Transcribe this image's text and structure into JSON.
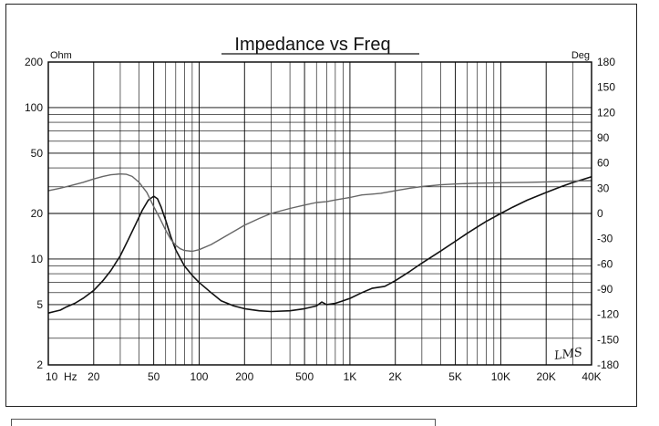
{
  "chart_data": {
    "type": "line",
    "title": "Impedance vs Freq",
    "y_left_unit": "Ohm",
    "y_right_unit": "Deg",
    "x_scale": "log",
    "y_left_scale": "log",
    "xlim": [
      10,
      40000
    ],
    "ylim_left": [
      2,
      200
    ],
    "ylim_right": [
      -180,
      180
    ],
    "x_tick_labels": [
      {
        "value": 10,
        "label": "10"
      },
      {
        "value": 20,
        "label": "20"
      },
      {
        "value": 50,
        "label": "50"
      },
      {
        "value": 100,
        "label": "100"
      },
      {
        "value": 200,
        "label": "200"
      },
      {
        "value": 500,
        "label": "500"
      },
      {
        "value": 1000,
        "label": "1K"
      },
      {
        "value": 2000,
        "label": "2K"
      },
      {
        "value": 5000,
        "label": "5K"
      },
      {
        "value": 10000,
        "label": "10K"
      },
      {
        "value": 20000,
        "label": "20K"
      },
      {
        "value": 40000,
        "label": "40K"
      }
    ],
    "x_unit_label": "Hz",
    "y_left_tick_labels": [
      {
        "value": 2,
        "label": "2"
      },
      {
        "value": 5,
        "label": "5"
      },
      {
        "value": 10,
        "label": "10"
      },
      {
        "value": 20,
        "label": "20"
      },
      {
        "value": 50,
        "label": "50"
      },
      {
        "value": 100,
        "label": "100"
      },
      {
        "value": 200,
        "label": "200"
      }
    ],
    "y_right_tick_labels": [
      {
        "value": 180,
        "label": "180"
      },
      {
        "value": 150,
        "label": "150"
      },
      {
        "value": 120,
        "label": "120"
      },
      {
        "value": 90,
        "label": "90"
      },
      {
        "value": 60,
        "label": "60"
      },
      {
        "value": 30,
        "label": "30"
      },
      {
        "value": 0,
        "label": "0"
      },
      {
        "value": -30,
        "label": "-30"
      },
      {
        "value": -60,
        "label": "-60"
      },
      {
        "value": -90,
        "label": "-90"
      },
      {
        "value": -120,
        "label": "-120"
      },
      {
        "value": -150,
        "label": "-150"
      },
      {
        "value": -180,
        "label": "-180"
      }
    ],
    "grid": true,
    "series": [
      {
        "axis": "left",
        "color": "#111111",
        "points": [
          [
            10,
            4.4
          ],
          [
            11,
            4.5
          ],
          [
            12,
            4.6
          ],
          [
            13,
            4.8
          ],
          [
            15,
            5.1
          ],
          [
            17,
            5.5
          ],
          [
            20,
            6.2
          ],
          [
            23,
            7.2
          ],
          [
            26,
            8.4
          ],
          [
            30,
            10.5
          ],
          [
            34,
            13.5
          ],
          [
            38,
            17
          ],
          [
            42,
            21
          ],
          [
            46,
            24.5
          ],
          [
            50,
            26
          ],
          [
            53,
            25
          ],
          [
            56,
            22
          ],
          [
            60,
            18
          ],
          [
            65,
            14
          ],
          [
            70,
            11.5
          ],
          [
            80,
            9
          ],
          [
            90,
            7.8
          ],
          [
            100,
            7
          ],
          [
            120,
            6
          ],
          [
            140,
            5.3
          ],
          [
            170,
            4.9
          ],
          [
            200,
            4.7
          ],
          [
            250,
            4.55
          ],
          [
            300,
            4.5
          ],
          [
            400,
            4.55
          ],
          [
            500,
            4.7
          ],
          [
            600,
            4.9
          ],
          [
            650,
            5.2
          ],
          [
            700,
            5.0
          ],
          [
            800,
            5.1
          ],
          [
            900,
            5.3
          ],
          [
            1000,
            5.5
          ],
          [
            1200,
            6.0
          ],
          [
            1400,
            6.4
          ],
          [
            1700,
            6.6
          ],
          [
            2000,
            7.2
          ],
          [
            2500,
            8.3
          ],
          [
            3000,
            9.4
          ],
          [
            4000,
            11.3
          ],
          [
            5000,
            13.1
          ],
          [
            6000,
            14.8
          ],
          [
            7000,
            16.3
          ],
          [
            8000,
            17.7
          ],
          [
            10000,
            20
          ],
          [
            12000,
            22
          ],
          [
            15000,
            24.5
          ],
          [
            20000,
            27.5
          ],
          [
            25000,
            30
          ],
          [
            30000,
            32
          ],
          [
            35000,
            33.5
          ],
          [
            40000,
            35
          ]
        ]
      },
      {
        "axis": "right",
        "color": "#666666",
        "points": [
          [
            10,
            27
          ],
          [
            12,
            30
          ],
          [
            14,
            33
          ],
          [
            17,
            37
          ],
          [
            20,
            41
          ],
          [
            23,
            44
          ],
          [
            26,
            46
          ],
          [
            30,
            47
          ],
          [
            33,
            46.5
          ],
          [
            36,
            44
          ],
          [
            40,
            37
          ],
          [
            45,
            25
          ],
          [
            50,
            8
          ],
          [
            55,
            -6
          ],
          [
            60,
            -20
          ],
          [
            65,
            -31
          ],
          [
            70,
            -38
          ],
          [
            75,
            -42
          ],
          [
            80,
            -44
          ],
          [
            90,
            -45
          ],
          [
            100,
            -43
          ],
          [
            120,
            -37
          ],
          [
            150,
            -27
          ],
          [
            200,
            -14
          ],
          [
            250,
            -6
          ],
          [
            300,
            0
          ],
          [
            400,
            6
          ],
          [
            500,
            10
          ],
          [
            600,
            13
          ],
          [
            700,
            14
          ],
          [
            800,
            16
          ],
          [
            1000,
            19
          ],
          [
            1200,
            22
          ],
          [
            1400,
            23
          ],
          [
            1600,
            24
          ],
          [
            2000,
            27
          ],
          [
            2500,
            30
          ],
          [
            3000,
            32
          ],
          [
            4000,
            34
          ],
          [
            5000,
            35
          ],
          [
            7000,
            36
          ],
          [
            10000,
            36.5
          ],
          [
            15000,
            37
          ],
          [
            20000,
            37.5
          ],
          [
            30000,
            38.5
          ],
          [
            40000,
            39
          ]
        ]
      }
    ],
    "signature": "LMS"
  }
}
